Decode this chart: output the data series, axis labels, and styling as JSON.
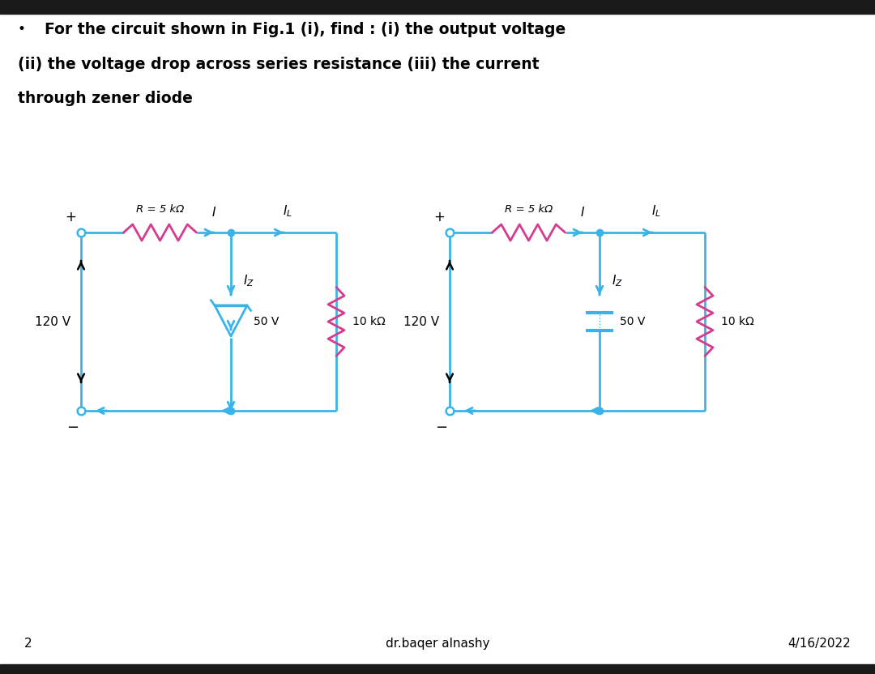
{
  "title_line1": "For the circuit shown in Fig.1 (i), find : (i) the output voltage",
  "title_line2": "(ii) the voltage drop across series resistance (iii) the current",
  "title_line3": "through zener diode",
  "page_number": "2",
  "author": "dr.baqer alnashy",
  "date": "4/16/2022",
  "bg_color": "#ffffff",
  "circuit_color": "#3ab4e8",
  "resistor_color": "#d63b8f",
  "label_R": "R = 5 kΩ",
  "label_I": "I",
  "label_IL": "I_L",
  "label_Iz": "I_Z",
  "label_zener": "50 V",
  "label_source": "120 V",
  "label_load": "10 kΩ"
}
